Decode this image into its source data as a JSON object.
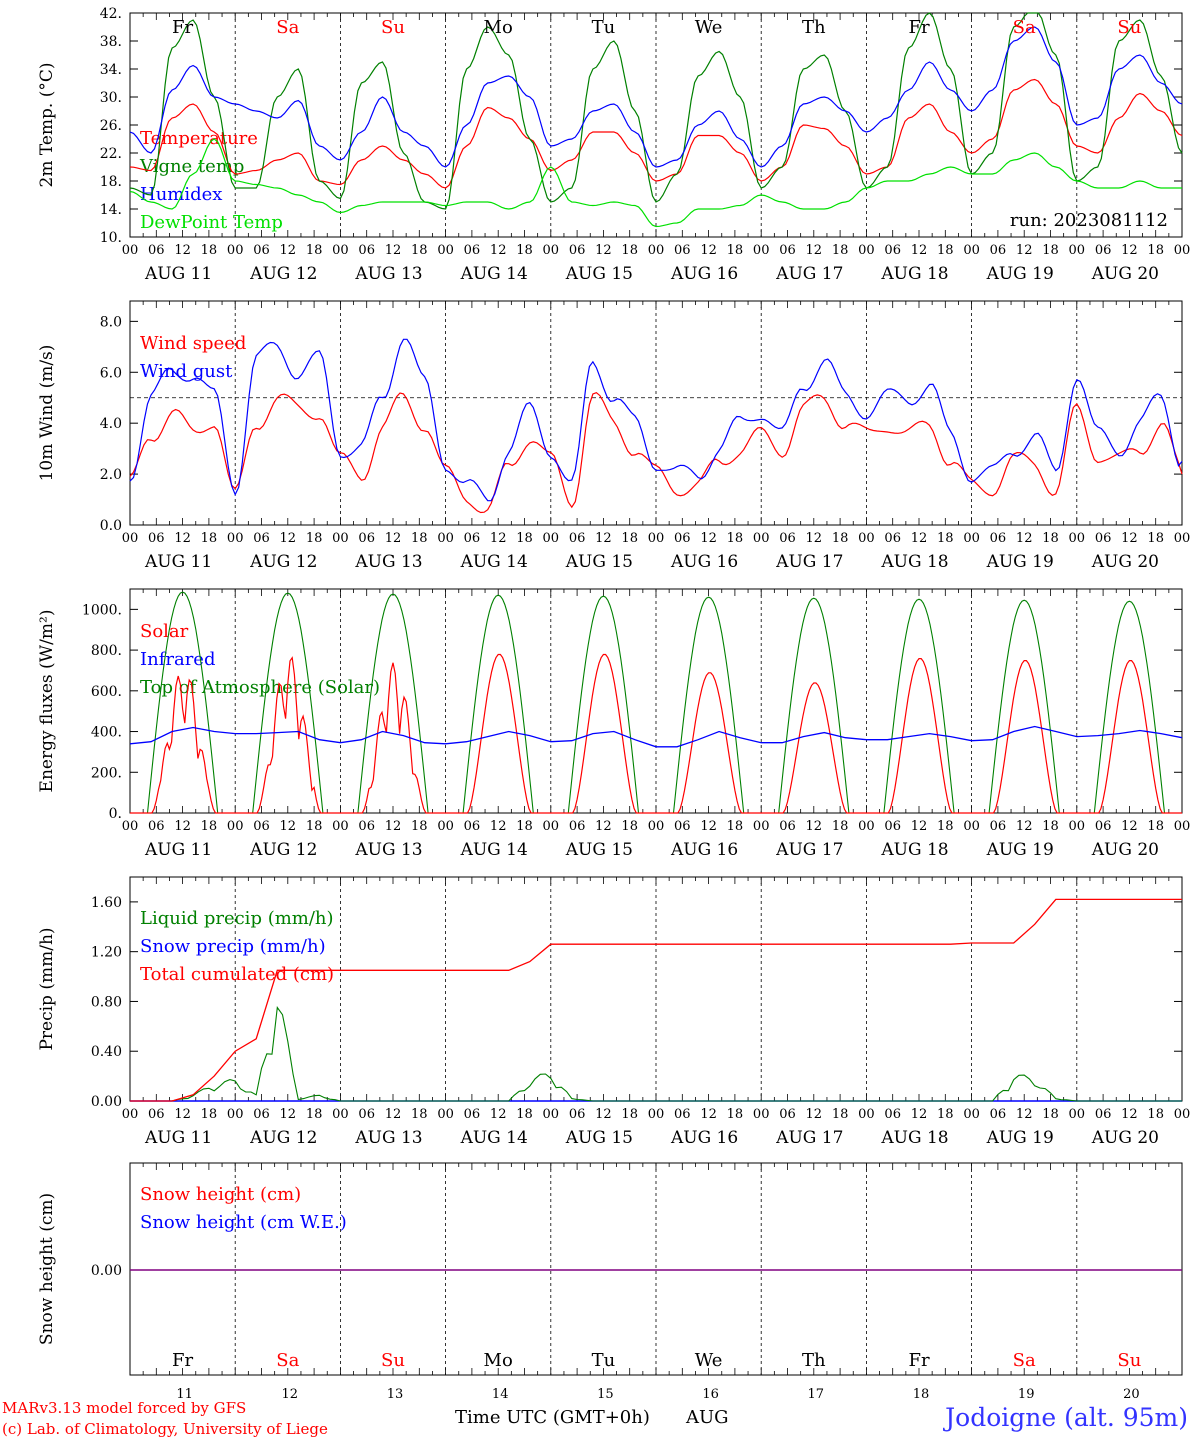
{
  "colors": {
    "red": "#ff0000",
    "blue": "#0000ff",
    "green": "#008000",
    "lightgreen": "#00e000",
    "purple": "#800080",
    "grid": "#000000",
    "title": "#3333ff"
  },
  "run_label": "run: 2023081112",
  "day_names": [
    "Fr",
    "Sa",
    "Su",
    "Mo",
    "Tu",
    "We",
    "Th",
    "Fr",
    "Sa",
    "Su"
  ],
  "weekend_flags": [
    false,
    true,
    true,
    false,
    false,
    false,
    false,
    false,
    true,
    true
  ],
  "hour_ticks": [
    "00",
    "06",
    "12",
    "18"
  ],
  "final_tick": "00",
  "date_labels": [
    "AUG 11",
    "AUG 12",
    "AUG 13",
    "AUG 14",
    "AUG 15",
    "AUG 16",
    "AUG 17",
    "AUG 18",
    "AUG 19",
    "AUG 20"
  ],
  "bottom_day_numbers": [
    "11",
    "12",
    "13",
    "14",
    "15",
    "16",
    "17",
    "18",
    "19",
    "20"
  ],
  "footer": {
    "model": "MARv3.13 model forced by GFS",
    "copyright": "(c) Lab. of Climatology, University of Liege",
    "xaxis": "Time UTC (GMT+0h)",
    "month": "AUG",
    "station": "Jodoigne (alt. 95m)"
  },
  "chart_data": [
    {
      "id": "temp",
      "type": "line",
      "ylabel": "2m Temp. (°C)",
      "yticks": [
        "42.",
        "38.",
        "34.",
        "30.",
        "26.",
        "22.",
        "18.",
        "14.",
        "10."
      ],
      "ylim": [
        10,
        42
      ],
      "legend": [
        "Temperature",
        "Vigne temp",
        "Humidex",
        "DewPoint Temp"
      ],
      "legend_colors": [
        "red",
        "green",
        "blue",
        "lightgreen"
      ],
      "x_hours_step": 6,
      "series": [
        {
          "name": "Temperature",
          "color": "red",
          "values": [
            20,
            19.5,
            27,
            29,
            25,
            19,
            19.5,
            21,
            22,
            18,
            17.5,
            21,
            23,
            21,
            19,
            17,
            23,
            28.5,
            27,
            24,
            19.5,
            21,
            25,
            25,
            22,
            18,
            19,
            24.5,
            24.5,
            22,
            18,
            20,
            26,
            25.5,
            23,
            19,
            20,
            27,
            29,
            25,
            22,
            24,
            31,
            32.5,
            29,
            23,
            22,
            27,
            30.5,
            28,
            24.5
          ]
        },
        {
          "name": "Vigne temp",
          "color": "green",
          "values": [
            17,
            16,
            37,
            41,
            30,
            17,
            17,
            30,
            34,
            18,
            15.5,
            32,
            35,
            22,
            15,
            14,
            34,
            40,
            36,
            24,
            15,
            17,
            34,
            38,
            28,
            15,
            19,
            33,
            36.5,
            30,
            17,
            20,
            34,
            36,
            28,
            17,
            20,
            37,
            42,
            34,
            19,
            22,
            40,
            43,
            36,
            18,
            20,
            38,
            41,
            33,
            22
          ]
        },
        {
          "name": "Humidex",
          "color": "blue",
          "values": [
            25,
            22,
            31,
            34.5,
            30,
            29,
            28,
            27,
            29.5,
            23,
            21,
            25,
            30,
            25,
            23,
            20,
            26,
            32,
            33,
            30,
            23,
            24,
            28,
            29,
            25,
            20,
            21,
            26,
            28,
            24,
            20,
            23,
            29,
            30,
            28,
            25,
            27,
            31,
            35,
            31,
            28,
            31,
            38,
            40,
            35,
            26,
            27,
            34,
            36,
            32,
            29
          ]
        },
        {
          "name": "DewPoint Temp",
          "color": "lightgreen",
          "values": [
            16.5,
            15,
            14,
            19,
            24,
            18,
            17.5,
            17,
            16,
            15,
            13.5,
            14.5,
            15,
            15,
            15,
            14.5,
            15,
            15,
            14,
            15,
            20,
            15,
            14.5,
            15,
            14.5,
            11.5,
            12,
            14,
            14,
            14.5,
            16,
            15,
            14,
            14,
            15,
            17,
            18,
            18,
            19,
            20,
            19,
            19,
            21,
            22,
            20,
            18,
            17,
            17,
            18,
            17,
            17
          ]
        }
      ]
    },
    {
      "id": "wind",
      "type": "line",
      "ylabel": "10m Wind (m/s)",
      "yticks": [
        "8.0",
        "6.0",
        "4.0",
        "2.0",
        "0.0"
      ],
      "ylim": [
        0,
        8.8
      ],
      "ref_line": 5.0,
      "legend": [
        "Wind speed",
        "Wind gust"
      ],
      "legend_colors": [
        "red",
        "blue"
      ],
      "x_hours_step": 6,
      "series": [
        {
          "name": "Wind speed",
          "color": "red",
          "values": [
            1.6,
            3.5,
            4.5,
            3.5,
            4.2,
            1.1,
            4.0,
            5.0,
            4.5,
            4.5,
            2.5,
            2.0,
            3.8,
            5.0,
            4.0,
            2.0,
            1.2,
            0.5,
            2.3,
            3.5,
            2.5,
            1.0,
            5.0,
            4.0,
            3.0,
            2.0,
            1.5,
            1.5,
            2.5,
            3.0,
            3.5,
            3.0,
            4.5,
            5.0,
            4.0,
            3.5,
            4.0,
            3.5,
            4.0,
            2.5,
            1.5,
            1.5,
            2.5,
            2.5,
            1.3,
            4.5,
            2.8,
            2.5,
            3.0,
            4.0,
            2.0
          ]
        },
        {
          "name": "Wind gust",
          "color": "blue",
          "values": [
            2.0,
            5.0,
            6.0,
            6.0,
            5.0,
            1.5,
            6.5,
            7.0,
            6.0,
            6.5,
            3.0,
            3.0,
            5.0,
            7.5,
            5.5,
            2.5,
            1.5,
            1.0,
            3.0,
            4.5,
            3.0,
            1.5,
            6.5,
            5.0,
            4.0,
            2.5,
            2.0,
            2.0,
            3.0,
            4.0,
            4.5,
            3.5,
            5.5,
            6.5,
            5.0,
            4.5,
            5.0,
            5.0,
            5.5,
            3.5,
            2.0,
            2.0,
            3.0,
            3.5,
            2.0,
            6.0,
            3.5,
            3.0,
            4.0,
            5.0,
            2.5
          ]
        }
      ]
    },
    {
      "id": "energy",
      "type": "line",
      "ylabel": "Energy fluxes (W/m²)",
      "yticks": [
        "1000.",
        "800.",
        "600.",
        "400.",
        "200.",
        "0."
      ],
      "ylim": [
        0,
        1100
      ],
      "legend": [
        "Solar",
        "Infrared",
        "Top of Atmosphere (Solar)"
      ],
      "legend_colors": [
        "red",
        "blue",
        "green"
      ],
      "toa_peaks": [
        1085,
        1080,
        1075,
        1070,
        1065,
        1060,
        1055,
        1050,
        1045,
        1040
      ],
      "solar_peaks": [
        720,
        780,
        740,
        780,
        780,
        690,
        640,
        760,
        750,
        750
      ],
      "series": [
        {
          "name": "Infrared",
          "color": "blue",
          "values": [
            340,
            350,
            400,
            420,
            400,
            390,
            390,
            395,
            400,
            360,
            345,
            360,
            400,
            380,
            345,
            340,
            350,
            375,
            400,
            380,
            350,
            355,
            390,
            400,
            360,
            325,
            325,
            360,
            400,
            370,
            345,
            345,
            375,
            395,
            370,
            360,
            360,
            375,
            390,
            375,
            355,
            360,
            400,
            425,
            400,
            375,
            380,
            390,
            405,
            390,
            370
          ]
        }
      ]
    },
    {
      "id": "precip",
      "type": "line",
      "ylabel": "Precip (mm/h)",
      "yticks": [
        "1.60",
        "1.20",
        "0.80",
        "0.40",
        "0.00"
      ],
      "ylim": [
        0,
        1.8
      ],
      "legend": [
        "Liquid precip (mm/h)",
        "Snow precip (mm/h)",
        "Total cumulated (cm)"
      ],
      "legend_colors": [
        "green",
        "blue",
        "red"
      ],
      "series": [
        {
          "name": "Total cumulated (cm)",
          "color": "red",
          "values": [
            0,
            0,
            0,
            0.05,
            0.2,
            0.4,
            0.5,
            1.05,
            1.05,
            1.05,
            1.05,
            1.05,
            1.05,
            1.05,
            1.05,
            1.05,
            1.05,
            1.05,
            1.05,
            1.12,
            1.26,
            1.26,
            1.26,
            1.26,
            1.26,
            1.26,
            1.26,
            1.26,
            1.26,
            1.26,
            1.26,
            1.26,
            1.26,
            1.26,
            1.26,
            1.26,
            1.26,
            1.26,
            1.26,
            1.26,
            1.27,
            1.27,
            1.27,
            1.42,
            1.62,
            1.62,
            1.62,
            1.62,
            1.62,
            1.62,
            1.62
          ]
        },
        {
          "name": "Liquid precip (mm/h)",
          "color": "green",
          "values": [
            0,
            0,
            0,
            0.05,
            0.15,
            0.18,
            0.05,
            0.95,
            0.02,
            0.05,
            0,
            0,
            0,
            0,
            0,
            0,
            0,
            0,
            0,
            0.18,
            0.25,
            0.02,
            0,
            0,
            0,
            0,
            0,
            0,
            0,
            0,
            0,
            0,
            0,
            0,
            0,
            0,
            0,
            0,
            0,
            0,
            0,
            0,
            0.22,
            0.2,
            0.02,
            0,
            0,
            0,
            0,
            0,
            0
          ]
        }
      ]
    },
    {
      "id": "snow",
      "type": "line",
      "ylabel": "Snow height (cm)",
      "yticks": [
        "0.00"
      ],
      "legend": [
        "Snow height (cm)",
        "Snow height (cm W.E.)"
      ],
      "legend_colors": [
        "red",
        "blue"
      ],
      "series": [
        {
          "name": "Snow height (cm)",
          "color": "red",
          "values": [
            0,
            0
          ]
        },
        {
          "name": "Snow height (cm W.E.)",
          "color": "blue",
          "values": [
            0,
            0
          ]
        }
      ]
    }
  ]
}
